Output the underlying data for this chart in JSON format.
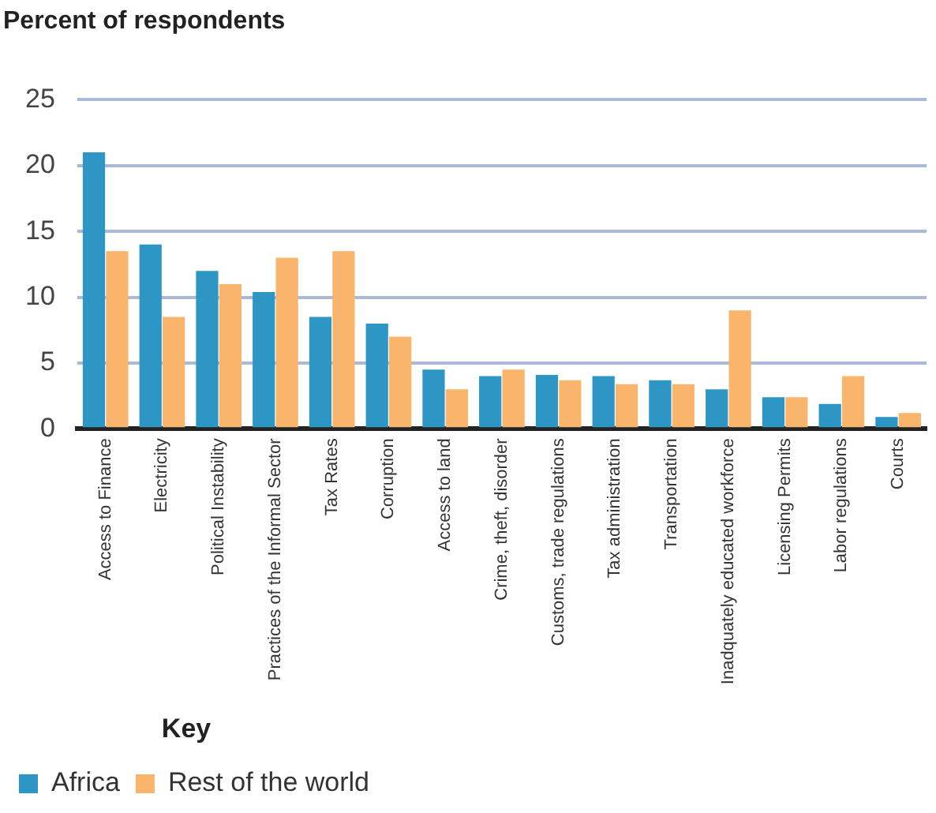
{
  "chart_data": {
    "type": "bar",
    "title": "Percent of respondents",
    "legend_title": "Key",
    "categories": [
      "Access to Finance",
      "Electricity",
      "Political Instability",
      "Practices of the Informal Sector",
      "Tax Rates",
      "Corruption",
      "Access to land",
      "Crime, theft, disorder",
      "Customs, trade regulations",
      "Tax administration",
      "Transportation",
      "Inadquately educated workforce",
      "Licensing Permits",
      "Labor regulations",
      "Courts"
    ],
    "series": [
      {
        "name": "Africa",
        "color": "#2e96c4",
        "values": [
          21,
          14,
          12,
          10.4,
          8.5,
          8,
          4.5,
          4,
          4.1,
          4,
          3.7,
          3,
          2.4,
          1.9,
          0.9
        ]
      },
      {
        "name": "Rest of the world",
        "color": "#f9b56b",
        "values": [
          13.5,
          8.5,
          11,
          13,
          13.5,
          7,
          3,
          4.5,
          3.7,
          3.4,
          3.4,
          9,
          2.4,
          4,
          1.2
        ]
      }
    ],
    "ylim": [
      0,
      25
    ],
    "yticks": [
      0,
      5,
      10,
      15,
      20,
      25
    ],
    "grid": "y",
    "legend": "bottom left"
  }
}
